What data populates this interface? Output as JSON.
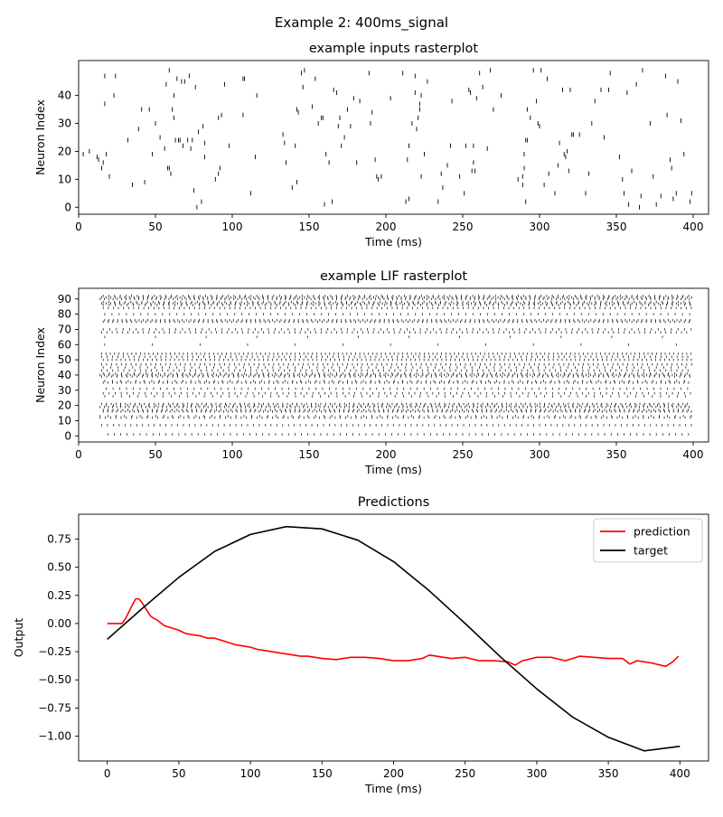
{
  "figure": {
    "suptitle": "Example 2: 400ms_signal"
  },
  "chart_data": [
    {
      "type": "scatter",
      "title": "example inputs rasterplot",
      "xlabel": "Time (ms)",
      "ylabel": "Neuron Index",
      "xlim": [
        0,
        410
      ],
      "ylim": [
        -2.5,
        52.5
      ],
      "xticks": [
        0,
        50,
        100,
        150,
        200,
        250,
        300,
        350,
        400
      ],
      "yticks": [
        0,
        10,
        20,
        30,
        40
      ],
      "marker": "|",
      "spikes": [
        [
          3,
          19
        ],
        [
          7,
          20
        ],
        [
          12,
          18
        ],
        [
          13,
          17
        ],
        [
          15,
          14
        ],
        [
          16,
          16
        ],
        [
          17,
          37
        ],
        [
          17,
          47
        ],
        [
          18,
          19
        ],
        [
          20,
          11
        ],
        [
          23,
          40
        ],
        [
          24,
          47
        ],
        [
          32,
          24
        ],
        [
          35,
          8
        ],
        [
          39,
          28
        ],
        [
          41,
          35
        ],
        [
          43,
          9
        ],
        [
          46,
          35
        ],
        [
          48,
          19
        ],
        [
          50,
          30
        ],
        [
          53,
          25
        ],
        [
          56,
          21
        ],
        [
          57,
          44
        ],
        [
          58,
          14
        ],
        [
          59,
          14
        ],
        [
          59,
          49
        ],
        [
          60,
          12
        ],
        [
          61,
          35
        ],
        [
          62,
          32
        ],
        [
          62,
          40
        ],
        [
          63,
          24
        ],
        [
          64,
          46
        ],
        [
          65,
          24
        ],
        [
          66,
          24
        ],
        [
          67,
          45
        ],
        [
          68,
          22
        ],
        [
          69,
          45
        ],
        [
          71,
          24
        ],
        [
          72,
          47
        ],
        [
          73,
          21
        ],
        [
          74,
          24
        ],
        [
          75,
          6
        ],
        [
          76,
          43
        ],
        [
          77,
          0
        ],
        [
          78,
          27
        ],
        [
          80,
          2
        ],
        [
          81,
          29
        ],
        [
          82,
          23
        ],
        [
          82,
          18
        ],
        [
          89,
          10
        ],
        [
          91,
          12
        ],
        [
          91,
          32
        ],
        [
          92,
          14
        ],
        [
          93,
          33
        ],
        [
          95,
          44
        ],
        [
          98,
          22
        ],
        [
          107,
          33
        ],
        [
          107,
          46
        ],
        [
          108,
          46
        ],
        [
          112,
          5
        ],
        [
          115,
          18
        ],
        [
          116,
          40
        ],
        [
          133,
          26
        ],
        [
          134,
          23
        ],
        [
          135,
          16
        ],
        [
          139,
          7
        ],
        [
          141,
          22
        ],
        [
          142,
          9
        ],
        [
          142,
          35
        ],
        [
          143,
          34
        ],
        [
          145,
          48
        ],
        [
          146,
          43
        ],
        [
          147,
          49
        ],
        [
          152,
          36
        ],
        [
          154,
          46
        ],
        [
          156,
          30
        ],
        [
          158,
          32
        ],
        [
          159,
          32
        ],
        [
          160,
          1
        ],
        [
          161,
          19
        ],
        [
          163,
          16
        ],
        [
          165,
          2
        ],
        [
          166,
          42
        ],
        [
          168,
          41
        ],
        [
          169,
          29
        ],
        [
          170,
          32
        ],
        [
          171,
          22
        ],
        [
          173,
          25
        ],
        [
          175,
          35
        ],
        [
          177,
          29
        ],
        [
          179,
          39
        ],
        [
          181,
          16
        ],
        [
          183,
          38
        ],
        [
          189,
          48
        ],
        [
          190,
          30
        ],
        [
          191,
          34
        ],
        [
          193,
          17
        ],
        [
          194,
          11
        ],
        [
          195,
          10
        ],
        [
          197,
          11
        ],
        [
          203,
          39
        ],
        [
          211,
          48
        ],
        [
          213,
          2
        ],
        [
          214,
          17
        ],
        [
          215,
          3
        ],
        [
          215,
          22
        ],
        [
          217,
          30
        ],
        [
          219,
          41
        ],
        [
          219,
          47
        ],
        [
          220,
          28
        ],
        [
          221,
          32
        ],
        [
          222,
          37
        ],
        [
          222,
          35
        ],
        [
          223,
          11
        ],
        [
          223,
          40
        ],
        [
          225,
          19
        ],
        [
          227,
          45
        ],
        [
          234,
          2
        ],
        [
          236,
          12
        ],
        [
          237,
          7
        ],
        [
          240,
          15
        ],
        [
          242,
          22
        ],
        [
          243,
          38
        ],
        [
          248,
          11
        ],
        [
          251,
          5
        ],
        [
          252,
          22
        ],
        [
          254,
          42
        ],
        [
          255,
          41
        ],
        [
          256,
          13
        ],
        [
          257,
          16
        ],
        [
          257,
          22
        ],
        [
          258,
          13
        ],
        [
          259,
          39
        ],
        [
          261,
          48
        ],
        [
          263,
          43
        ],
        [
          266,
          21
        ],
        [
          268,
          49
        ],
        [
          270,
          35
        ],
        [
          275,
          40
        ],
        [
          286,
          10
        ],
        [
          289,
          11
        ],
        [
          289,
          8
        ],
        [
          291,
          2
        ],
        [
          290,
          14
        ],
        [
          290,
          19
        ],
        [
          291,
          24
        ],
        [
          292,
          24
        ],
        [
          292,
          35
        ],
        [
          294,
          32
        ],
        [
          296,
          49
        ],
        [
          298,
          38
        ],
        [
          299,
          30
        ],
        [
          300,
          29
        ],
        [
          301,
          49
        ],
        [
          303,
          8
        ],
        [
          305,
          46
        ],
        [
          306,
          12
        ],
        [
          310,
          5
        ],
        [
          312,
          15
        ],
        [
          313,
          23
        ],
        [
          315,
          42
        ],
        [
          316,
          19
        ],
        [
          317,
          18
        ],
        [
          318,
          20
        ],
        [
          319,
          13
        ],
        [
          320,
          42
        ],
        [
          321,
          26
        ],
        [
          322,
          26
        ],
        [
          326,
          26
        ],
        [
          330,
          5
        ],
        [
          332,
          12
        ],
        [
          334,
          30
        ],
        [
          336,
          38
        ],
        [
          340,
          42
        ],
        [
          342,
          25
        ],
        [
          345,
          42
        ],
        [
          346,
          48
        ],
        [
          352,
          18
        ],
        [
          354,
          10
        ],
        [
          355,
          5
        ],
        [
          357,
          41
        ],
        [
          358,
          1
        ],
        [
          360,
          13
        ],
        [
          363,
          44
        ],
        [
          365,
          0
        ],
        [
          366,
          4
        ],
        [
          367,
          49
        ],
        [
          372,
          30
        ],
        [
          374,
          11
        ],
        [
          376,
          1
        ],
        [
          379,
          4
        ],
        [
          382,
          47
        ],
        [
          383,
          33
        ],
        [
          385,
          17
        ],
        [
          386,
          14
        ],
        [
          387,
          3
        ],
        [
          389,
          5
        ],
        [
          390,
          45
        ],
        [
          392,
          31
        ],
        [
          394,
          19
        ],
        [
          398,
          2
        ],
        [
          399,
          5
        ]
      ]
    },
    {
      "type": "scatter",
      "title": "example LIF rasterplot",
      "xlabel": "Time (ms)",
      "ylabel": "Neuron Index",
      "xlim": [
        0,
        410
      ],
      "ylim": [
        -4,
        97
      ],
      "xticks": [
        0,
        50,
        100,
        150,
        200,
        250,
        300,
        350,
        400
      ],
      "yticks": [
        0,
        10,
        20,
        30,
        40,
        50,
        60,
        70,
        80,
        90
      ],
      "marker": "|",
      "time_range": [
        14,
        399
      ],
      "neurons": [
        {
          "index": 1,
          "start": 19,
          "interval": 4.2
        },
        {
          "index": 7,
          "start": 15,
          "interval": 3.8
        },
        {
          "index": 12,
          "start": 14,
          "interval": 3.4
        },
        {
          "index": 13,
          "start": 14,
          "interval": 5.2
        },
        {
          "index": 16,
          "start": 16,
          "interval": 2.9
        },
        {
          "index": 17,
          "start": 16,
          "interval": 3.2
        },
        {
          "index": 19,
          "start": 14,
          "interval": 2.7
        },
        {
          "index": 20,
          "start": 18,
          "interval": 4.6
        },
        {
          "index": 21,
          "start": 15,
          "interval": 3.1
        },
        {
          "index": 26,
          "start": 17,
          "interval": 5.4
        },
        {
          "index": 28,
          "start": 16,
          "interval": 3.9
        },
        {
          "index": 31,
          "start": 18,
          "interval": 4.4
        },
        {
          "index": 35,
          "start": 16,
          "interval": 3.0
        },
        {
          "index": 36,
          "start": 17,
          "interval": 5.1
        },
        {
          "index": 39,
          "start": 15,
          "interval": 3.3
        },
        {
          "index": 40,
          "start": 14,
          "interval": 2.8
        },
        {
          "index": 41,
          "start": 16,
          "interval": 4.0
        },
        {
          "index": 43,
          "start": 15,
          "interval": 3.6
        },
        {
          "index": 45,
          "start": 16,
          "interval": 4.8
        },
        {
          "index": 47,
          "start": 15,
          "interval": 3.2
        },
        {
          "index": 50,
          "start": 16,
          "interval": 2.9
        },
        {
          "index": 52,
          "start": 15,
          "interval": 3.5
        },
        {
          "index": 54,
          "start": 15,
          "interval": 2.8
        },
        {
          "index": 60,
          "start": 17,
          "interval": 31.0
        },
        {
          "index": 65,
          "start": 17,
          "interval": 33.0
        },
        {
          "index": 68,
          "start": 15,
          "interval": 3.4
        },
        {
          "index": 70,
          "start": 16,
          "interval": 4.3
        },
        {
          "index": 75,
          "start": 16,
          "interval": 3.1
        },
        {
          "index": 76,
          "start": 17,
          "interval": 2.8
        },
        {
          "index": 80,
          "start": 17,
          "interval": 4.7
        },
        {
          "index": 84,
          "start": 16,
          "interval": 3.3
        },
        {
          "index": 86,
          "start": 16,
          "interval": 3.9
        },
        {
          "index": 87,
          "start": 15,
          "interval": 2.9
        },
        {
          "index": 88,
          "start": 16,
          "interval": 3.6
        },
        {
          "index": 90,
          "start": 14,
          "interval": 2.8
        },
        {
          "index": 91,
          "start": 15,
          "interval": 3.0
        },
        {
          "index": 92,
          "start": 16,
          "interval": 3.7
        }
      ]
    },
    {
      "type": "line",
      "title": "Predictions",
      "xlabel": "Time (ms)",
      "ylabel": "Output",
      "xlim": [
        -20,
        420
      ],
      "ylim": [
        -1.22,
        0.97
      ],
      "xticks": [
        0,
        50,
        100,
        150,
        200,
        250,
        300,
        350,
        400
      ],
      "yticks": [
        0.75,
        0.5,
        0.25,
        0.0,
        -0.25,
        -0.5,
        -0.75,
        -1.0
      ],
      "ytick_labels": [
        "0.75",
        "0.50",
        "0.25",
        "0.00",
        "−0.25",
        "−0.50",
        "−0.75",
        "−1.00"
      ],
      "legend": {
        "placement": "top-right"
      },
      "series": [
        {
          "name": "prediction",
          "color": "#ff0000",
          "x": [
            0,
            5,
            10,
            11,
            13,
            15,
            17,
            19,
            20,
            22,
            24,
            26,
            28,
            30,
            32,
            35,
            40,
            45,
            50,
            55,
            60,
            65,
            70,
            75,
            80,
            85,
            90,
            95,
            100,
            105,
            110,
            115,
            120,
            125,
            130,
            135,
            140,
            145,
            150,
            160,
            170,
            180,
            190,
            200,
            210,
            220,
            225,
            230,
            240,
            250,
            260,
            270,
            280,
            285,
            290,
            300,
            310,
            320,
            330,
            340,
            350,
            360,
            365,
            370,
            380,
            390,
            395,
            399
          ],
          "y": [
            0.0,
            0.0,
            0.0,
            0.01,
            0.05,
            0.1,
            0.15,
            0.2,
            0.22,
            0.22,
            0.19,
            0.15,
            0.11,
            0.07,
            0.05,
            0.03,
            -0.02,
            -0.04,
            -0.06,
            -0.09,
            -0.1,
            -0.11,
            -0.13,
            -0.13,
            -0.15,
            -0.17,
            -0.19,
            -0.2,
            -0.21,
            -0.23,
            -0.24,
            -0.25,
            -0.26,
            -0.27,
            -0.28,
            -0.29,
            -0.29,
            -0.3,
            -0.31,
            -0.32,
            -0.3,
            -0.3,
            -0.31,
            -0.33,
            -0.33,
            -0.31,
            -0.28,
            -0.29,
            -0.31,
            -0.3,
            -0.33,
            -0.33,
            -0.34,
            -0.37,
            -0.33,
            -0.3,
            -0.3,
            -0.33,
            -0.29,
            -0.3,
            -0.31,
            -0.31,
            -0.36,
            -0.33,
            -0.35,
            -0.38,
            -0.34,
            -0.29
          ]
        },
        {
          "name": "target",
          "color": "#000000",
          "x": [
            0,
            25,
            50,
            75,
            100,
            125,
            150,
            175,
            200,
            225,
            250,
            275,
            300,
            325,
            350,
            375,
            400
          ],
          "y": [
            -0.14,
            0.14,
            0.41,
            0.64,
            0.79,
            0.86,
            0.84,
            0.74,
            0.55,
            0.29,
            0.0,
            -0.3,
            -0.58,
            -0.83,
            -1.01,
            -1.13,
            -1.09
          ]
        }
      ]
    }
  ]
}
